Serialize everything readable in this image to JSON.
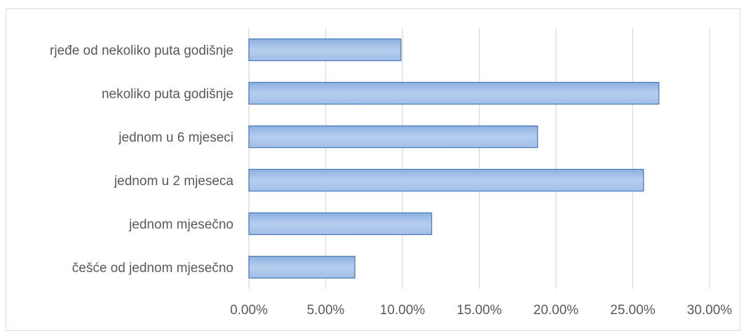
{
  "chart_data": {
    "type": "bar",
    "orientation": "horizontal",
    "categories": [
      "rjeđe od nekoliko puta godišnje",
      "nekoliko puta godišnje",
      "jednom u 6 mjeseci",
      "jednom u 2 mjeseca",
      "jednom mjesečno",
      "češće od jednom mjesečno"
    ],
    "values": [
      9.9,
      26.7,
      18.8,
      25.7,
      11.9,
      6.9
    ],
    "x_ticks": [
      "0.00%",
      "5.00%",
      "10.00%",
      "15.00%",
      "20.00%",
      "25.00%",
      "30.00%"
    ],
    "xlim": [
      0,
      30
    ],
    "grid": true,
    "legend": "none",
    "bar_fill": "#a9c4ea",
    "bar_fill_dark": "#8fb0df",
    "bar_stroke": "#4a7ebb",
    "grid_color": "#d9d9d9",
    "label_color": "#595959"
  }
}
